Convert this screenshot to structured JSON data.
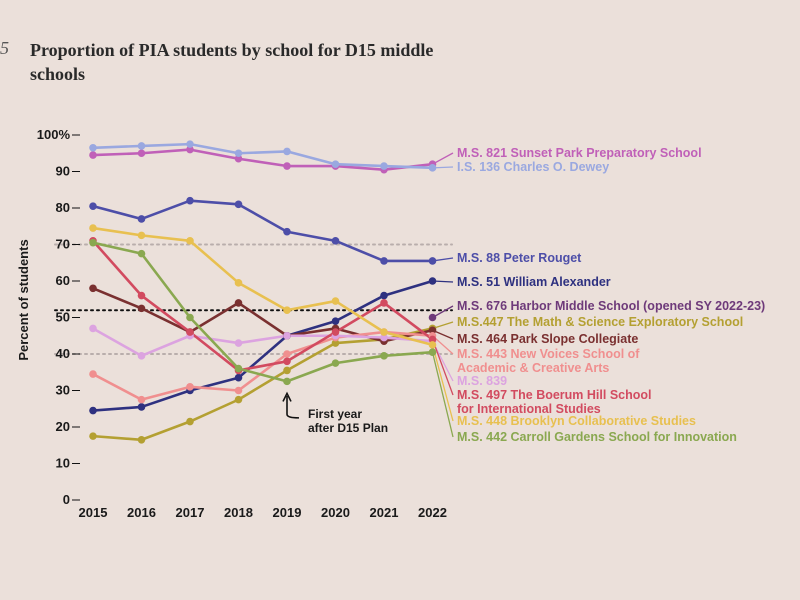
{
  "header": {
    "figure_number": "5",
    "title": "Proportion of PIA students by school for D15 middle schools"
  },
  "chart_data": {
    "type": "line",
    "x": [
      2015,
      2016,
      2017,
      2018,
      2019,
      2020,
      2021,
      2022
    ],
    "x_tick_labels": [
      "2015",
      "2016",
      "2017",
      "2018",
      "2019",
      "2020",
      "2021",
      "2022"
    ],
    "y_tick_labels": [
      "100%",
      "90",
      "80",
      "70",
      "60",
      "50",
      "40",
      "30",
      "20",
      "10",
      "0"
    ],
    "y_ticks": [
      100,
      90,
      80,
      70,
      60,
      50,
      40,
      30,
      20,
      10,
      0
    ],
    "ylabel": "Percent of students",
    "ylim": [
      0,
      100
    ],
    "reference_lines": [
      {
        "value": 70,
        "style": "dotted-gray"
      },
      {
        "value": 52,
        "style": "dotted-black"
      },
      {
        "value": 40,
        "style": "dotted-gray"
      }
    ],
    "annotation": {
      "text_lines": [
        "First year",
        "after D15 Plan"
      ],
      "x": 2019
    },
    "series": [
      {
        "name": "M.S. 821 Sunset Park Preparatory School",
        "color": "#c060b8",
        "values": [
          94.5,
          95,
          96,
          93.5,
          91.5,
          91.5,
          90.5,
          92
        ],
        "label_lines": [
          "M.S. 821 Sunset Park Preparatory School"
        ]
      },
      {
        "name": "I.S. 136 Charles O. Dewey",
        "color": "#9aa8e0",
        "values": [
          96.5,
          97,
          97.5,
          95,
          95.5,
          92,
          91.5,
          91
        ],
        "label_lines": [
          "I.S. 136 Charles O. Dewey"
        ]
      },
      {
        "name": "M.S. 88 Peter Rouget",
        "color": "#4d4ea8",
        "values": [
          80.5,
          77,
          82,
          81,
          73.5,
          71,
          65.5,
          65.5
        ],
        "label_lines": [
          "M.S. 88 Peter Rouget"
        ]
      },
      {
        "name": "M.S. 51 William Alexander",
        "color": "#2e3180",
        "values": [
          24.5,
          25.5,
          30,
          33.5,
          45,
          49,
          56,
          60
        ],
        "label_lines": [
          "M.S. 51 William Alexander"
        ]
      },
      {
        "name": "M.S. 676 Harbor Middle School (opened SY 2022-23)",
        "color": "#6e3a7a",
        "values": [
          null,
          null,
          null,
          null,
          null,
          null,
          null,
          50
        ],
        "label_lines": [
          "M.S. 676 Harbor Middle School (opened SY 2022-23)"
        ]
      },
      {
        "name": "M.S.447 The Math & Science Exploratory School",
        "color": "#b4a032",
        "values": [
          17.5,
          16.5,
          21.5,
          27.5,
          35.5,
          43,
          44,
          47
        ],
        "label_lines": [
          "M.S.447 The Math & Science Exploratory School"
        ]
      },
      {
        "name": "M.S. 464 Park Slope Collegiate",
        "color": "#7a3030",
        "values": [
          58,
          52.5,
          46,
          54,
          45,
          47,
          43.5,
          46.5
        ],
        "label_lines": [
          "M.S. 464 Park Slope Collegiate"
        ]
      },
      {
        "name": "M.S. 443 New Voices School of Academic & Creative Arts",
        "color": "#f08f8f",
        "values": [
          34.5,
          27.5,
          31,
          30,
          40,
          44.5,
          46,
          45
        ],
        "label_lines": [
          "M.S. 443 New Voices School of",
          "Academic & Creative Arts"
        ]
      },
      {
        "name": "M.S. 839",
        "color": "#dca3e0",
        "values": [
          47,
          39.5,
          45,
          43,
          45,
          45,
          44.5,
          43.5
        ],
        "label_lines": [
          "M.S. 839"
        ]
      },
      {
        "name": "M.S. 497 The Boerum Hill School for International Studies",
        "color": "#d24b60",
        "values": [
          71,
          56,
          46,
          35.5,
          38,
          46,
          54,
          44
        ],
        "label_lines": [
          "M.S. 497 The Boerum Hill School",
          "for International Studies"
        ]
      },
      {
        "name": "M.S. 448 Brooklyn Collaborative Studies",
        "color": "#e8c050",
        "values": [
          74.5,
          72.5,
          71,
          59.5,
          52,
          54.5,
          46,
          42.5
        ],
        "label_lines": [
          "M.S. 448 Brooklyn Collaborative Studies"
        ]
      },
      {
        "name": "M.S. 442 Carroll Gardens School for Innovation",
        "color": "#8aa850",
        "values": [
          70.5,
          67.5,
          50,
          36,
          32.5,
          37.5,
          39.5,
          40.5
        ],
        "label_lines": [
          "M.S. 442 Carroll Gardens School for Innovation"
        ]
      }
    ]
  }
}
